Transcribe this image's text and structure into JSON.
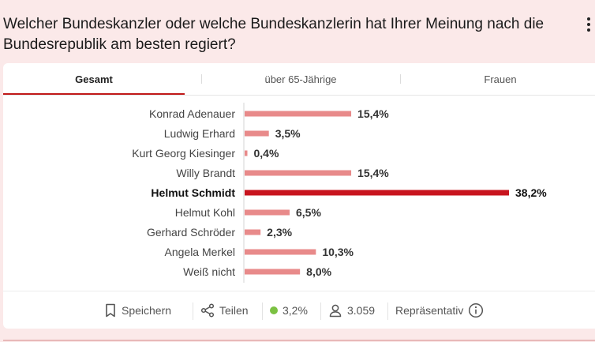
{
  "question": "Welcher Bundeskanzler oder welche Bundeskanzlerin hat Ihrer Meinung nach die Bundesrepublik am besten regiert?",
  "tabs": [
    {
      "label": "Gesamt",
      "active": true
    },
    {
      "label": "über 65-Jährige",
      "active": false
    },
    {
      "label": "Frauen",
      "active": false
    }
  ],
  "chart_data": {
    "type": "bar",
    "orientation": "horizontal",
    "categories": [
      "Konrad Adenauer",
      "Ludwig Erhard",
      "Kurt Georg Kiesinger",
      "Willy Brandt",
      "Helmut Schmidt",
      "Helmut Kohl",
      "Gerhard Schröder",
      "Angela Merkel",
      "Weiß nicht"
    ],
    "values": [
      15.4,
      3.5,
      0.4,
      15.4,
      38.2,
      6.5,
      2.3,
      10.3,
      8.0
    ],
    "labels": [
      "15,4%",
      "3,5%",
      "0,4%",
      "15,4%",
      "38,2%",
      "6,5%",
      "2,3%",
      "10,3%",
      "8,0%"
    ],
    "highlight": "Helmut Schmidt",
    "xlim": [
      0,
      38.2
    ],
    "colors": {
      "bar": "#e88a8a",
      "highlight": "#c8141e"
    }
  },
  "footer": {
    "save_label": "Speichern",
    "share_label": "Teilen",
    "margin_of_error": "3,2%",
    "respondents": "3.059",
    "representative_label": "Repräsentativ"
  }
}
